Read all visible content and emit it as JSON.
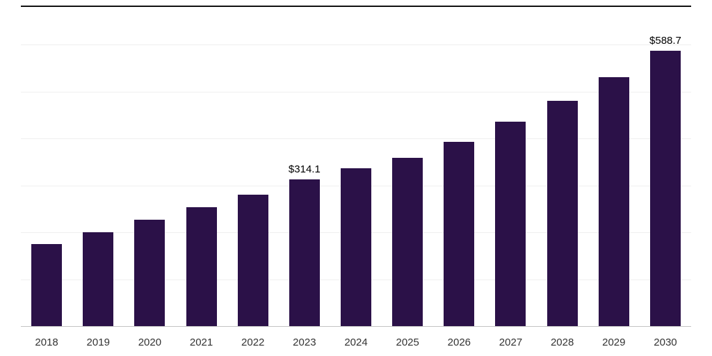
{
  "chart_data": {
    "type": "bar",
    "title": "",
    "xlabel": "",
    "ylabel": "",
    "categories": [
      "2018",
      "2019",
      "2020",
      "2021",
      "2022",
      "2023",
      "2024",
      "2025",
      "2026",
      "2027",
      "2028",
      "2029",
      "2030"
    ],
    "values": [
      177.0,
      202.0,
      228.5,
      255.5,
      281.0,
      314.1,
      337.5,
      360.0,
      394.0,
      437.0,
      482.0,
      532.0,
      588.7
    ],
    "value_labels": [
      "",
      "",
      "",
      "",
      "",
      "$314.1",
      "",
      "",
      "",
      "",
      "",
      "",
      "$588.7"
    ],
    "ylim": [
      0,
      600
    ],
    "grid_step": 100,
    "grid": "horizontal-only",
    "legend": "none",
    "y_tick_labels_visible": false,
    "colors": {
      "bar": "#2b1148",
      "gridline": "#efefef",
      "axis_line": "#c4c4c4",
      "top_border": "#111111",
      "value_label": "#000000",
      "tick_label": "#333333"
    }
  }
}
